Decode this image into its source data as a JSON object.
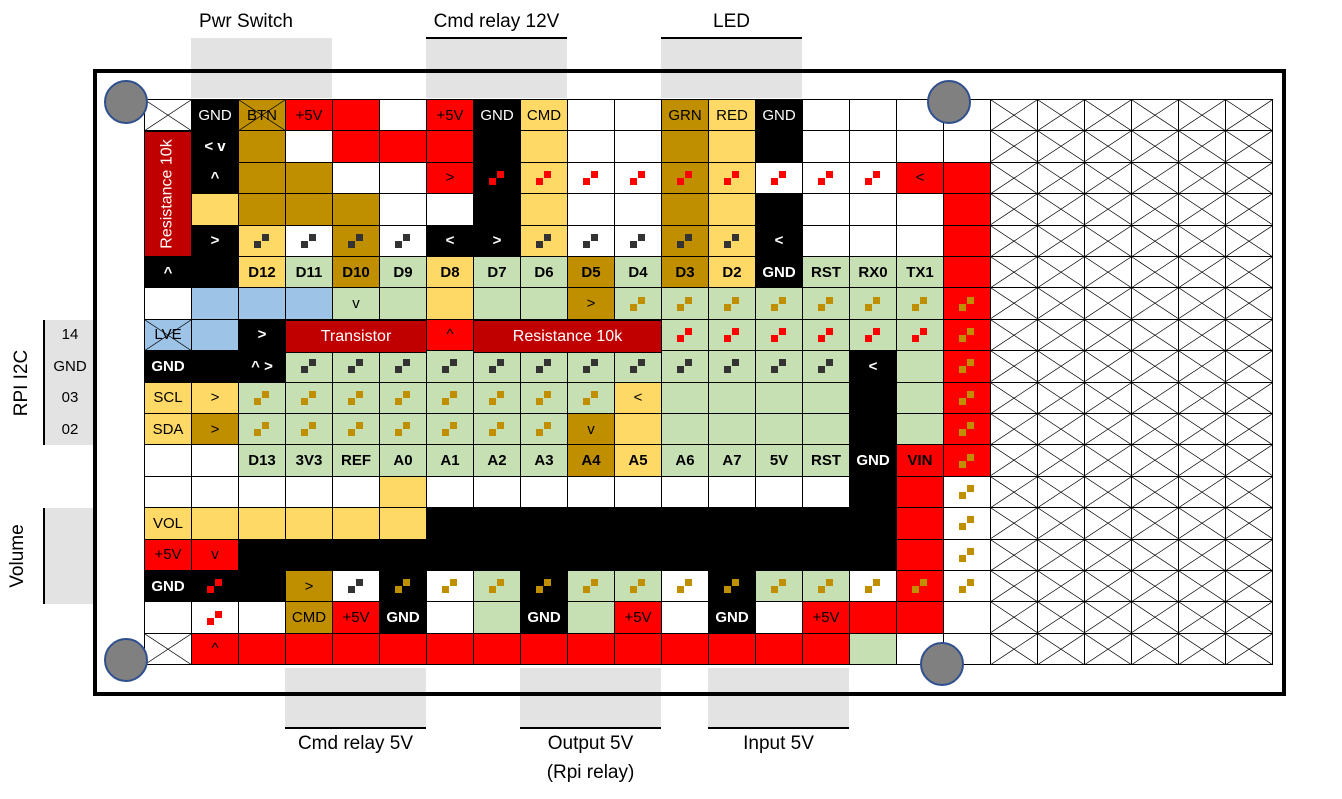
{
  "top_labels": {
    "pwr_switch": "Pwr Switch",
    "cmd_relay_12v": "Cmd relay 12V",
    "led": "LED"
  },
  "bottom_labels": {
    "cmd_relay_5v": "Cmd relay 5V",
    "output_5v": "Output 5V",
    "output_5v_sub": "(Rpi relay)",
    "input_5v": "Input 5V"
  },
  "side_labels": {
    "rpi_i2c": "RPI I2C",
    "volume": "Volume"
  },
  "side_pins": [
    "14",
    "GND",
    "03",
    "02"
  ],
  "spans": {
    "resistance_left": "Resistance 10k",
    "transistor": "Transistor",
    "resistance_mid": "Resistance 10k"
  },
  "colors": {
    "red": "#ff0000",
    "dark_red": "#c00000",
    "black": "#000000",
    "gold": "#bf8f00",
    "yellow": "#ffd966",
    "light_green": "#c6e0b4",
    "green": "#a9d08e",
    "blue": "#9dc3e6",
    "white": "#ffffff"
  },
  "grid_rows": [
    [
      "X",
      "k:GND",
      "gx:BTN",
      "r:+5V",
      "r",
      "w",
      "r:+5V",
      "k:GND",
      "y:CMD",
      "w",
      "w",
      "g:GRN",
      "y:RED",
      "k:GND",
      "w",
      "w",
      "w",
      "w"
    ],
    [
      "R",
      "k:< v",
      "g",
      "w",
      "r",
      "r",
      "r",
      "k",
      "y",
      "w",
      "w",
      "g",
      "y",
      "k",
      "w",
      "w",
      "w",
      "w"
    ],
    [
      "R",
      "k:^",
      "g",
      "g",
      "w",
      "w",
      "r:>",
      "k:rs",
      "y:rs",
      "w:rs",
      "w:rs",
      "g:rs",
      "y:rs",
      "w:rs",
      "w:rs",
      "w:rs",
      "r:<",
      "r"
    ],
    [
      "R",
      "y",
      "g",
      "g",
      "g",
      "w",
      "w",
      "k",
      "y",
      "w",
      "w",
      "g",
      "y",
      "k",
      "w",
      "w",
      "w",
      "r"
    ],
    [
      "R",
      "k:>",
      "y:ks",
      "w:ks",
      "g:ks",
      "w:ks",
      "k:<",
      "k:>",
      "y:ks",
      "w:ks",
      "w:ks",
      "g:ks",
      "y:ks",
      "k:<",
      "w",
      "w",
      "w",
      "r"
    ],
    [
      "k:^",
      "k",
      "y:D12",
      "l:D11",
      "g:D10",
      "l:D9",
      "y:D8",
      "l:D7",
      "l:D6",
      "g:D5",
      "l:D4",
      "g:D3",
      "y:D2",
      "k:GND",
      "l:RST",
      "l:RX0",
      "l:TX1",
      "r"
    ],
    [
      "w",
      "b",
      "b",
      "b",
      "l:v",
      "l",
      "y",
      "l",
      "l",
      "g:>",
      "l:gs",
      "l:gs",
      "l:gs",
      "l:gs",
      "l:gs",
      "l:gs",
      "l:gs",
      "r:gs"
    ],
    [
      "bx:LVE",
      "b",
      "k:>",
      "T",
      "T",
      "T",
      "r:^",
      "M",
      "M",
      "M",
      "M",
      "l:rs",
      "l:rs",
      "l:rs",
      "l:rs",
      "l:rs",
      "l:rs",
      "r:gs"
    ],
    [
      "k:GND",
      "k",
      "k:^ >",
      "l:ks",
      "l:ks",
      "l:ks",
      "l:ks",
      "l:ks",
      "l:ks",
      "l:ks",
      "l:ks",
      "l:ks",
      "l:ks",
      "l:ks",
      "l:ks",
      "k:<",
      "l",
      "r:gs"
    ],
    [
      "y:SCL",
      "y:>",
      "l:gs",
      "l:gs",
      "l:gs",
      "l:gs",
      "l:gs",
      "l:gs",
      "l:gs",
      "l:gs",
      "y:<",
      "l",
      "l",
      "l",
      "l",
      "k",
      "l",
      "r:gs"
    ],
    [
      "y:SDA",
      "g:>",
      "l:gs",
      "l:gs",
      "l:gs",
      "l:gs",
      "l:gs",
      "l:gs",
      "l:gs",
      "g:v",
      "y",
      "l",
      "l",
      "l",
      "l",
      "k",
      "l",
      "r:gs"
    ],
    [
      "w",
      "w",
      "l:D13",
      "l:3V3",
      "l:REF",
      "l:A0",
      "l:A1",
      "l:A2",
      "l:A3",
      "g:A4",
      "y:A5",
      "l:A6",
      "l:A7",
      "l:5V",
      "l:RST",
      "k:GND",
      "r:VIN",
      "r:gs"
    ],
    [
      "w",
      "w",
      "w",
      "w",
      "w",
      "y",
      "w",
      "w",
      "w",
      "w",
      "w",
      "w",
      "w",
      "w",
      "w",
      "k",
      "r",
      "w:gs"
    ],
    [
      "y:VOL",
      "y",
      "y",
      "y",
      "y",
      "y",
      "k",
      "k",
      "k",
      "k",
      "k",
      "k",
      "k",
      "k",
      "k",
      "k",
      "r",
      "w:gs"
    ],
    [
      "r:+5V",
      "r:v",
      "k",
      "k",
      "k",
      "k",
      "k",
      "k",
      "k",
      "k",
      "k",
      "k",
      "k",
      "k",
      "k",
      "k",
      "r",
      "w:gs"
    ],
    [
      "k:GND",
      "k:rs",
      "k",
      "g:>",
      "w:ks",
      "k:gs",
      "w:gs",
      "l:gs",
      "k:gs",
      "l:gs",
      "l:gs",
      "w:gs",
      "k:gs",
      "l:gs",
      "l:gs",
      "w:gs",
      "r:gs",
      "w:gs"
    ],
    [
      "w",
      "w:rs",
      "w",
      "g:CMD",
      "r:+5V",
      "k:GND",
      "w",
      "l",
      "k:GND",
      "l",
      "r:+5V",
      "w",
      "k:GND",
      "w",
      "r:+5V",
      "r",
      "r",
      "w"
    ],
    [
      "X",
      "r:^",
      "r",
      "r",
      "r",
      "r",
      "r",
      "r",
      "r",
      "r",
      "r",
      "r",
      "r",
      "r",
      "r",
      "l",
      "w",
      "w"
    ]
  ],
  "right_cross_rows": 18,
  "right_cross_cols": 6
}
